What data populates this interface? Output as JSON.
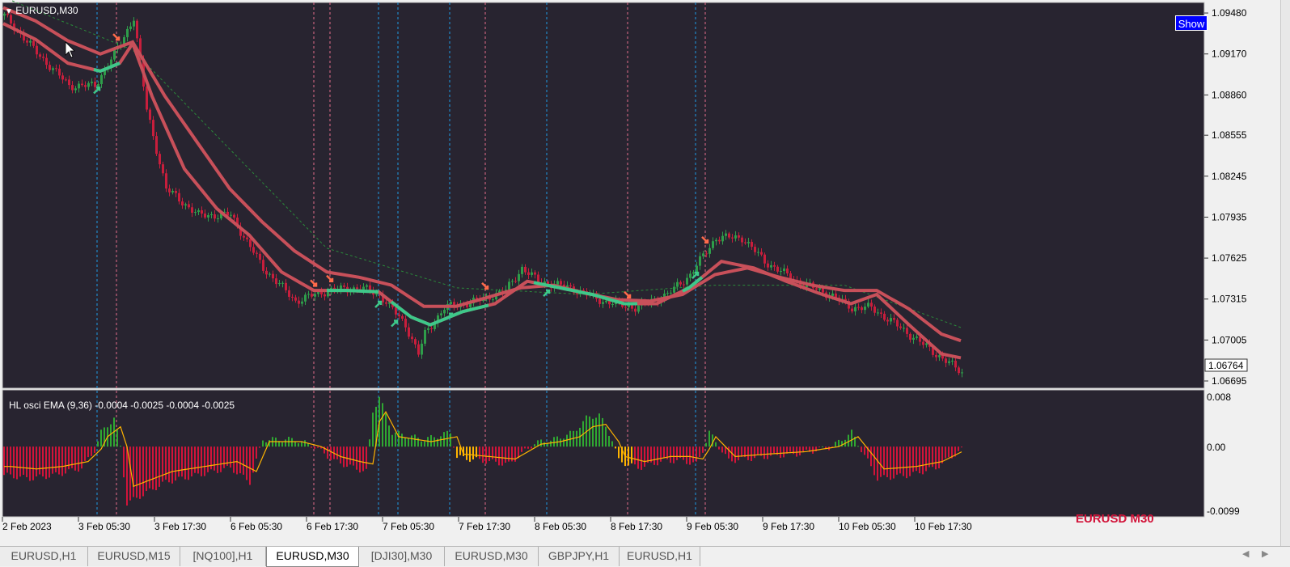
{
  "window": {
    "symbol_label": "EURUSD,M30",
    "show_button": "Show",
    "watermark": "EURUSD M30"
  },
  "colors": {
    "background": "#282430",
    "bull_candle": "#2e9d4a",
    "bear_candle": "#c81e3c",
    "ema_line": "#c8505a",
    "ema_up": "#3ec88a",
    "osc_pos": "#2fa832",
    "osc_neg": "#d2143a",
    "signal_line": "#ffb400",
    "vline_blue": "#1e9be6",
    "vline_pink": "#e66e8c"
  },
  "price_axis": {
    "ticks": [
      "1.09480",
      "1.09170",
      "1.08860",
      "1.08555",
      "1.08245",
      "1.07935",
      "1.07625",
      "1.07315",
      "1.07005",
      "1.06695"
    ],
    "current_price": "1.06764"
  },
  "indicator": {
    "label": "HL osci EMA (9,36) -0.0004 -0.0025 -0.0004 -0.0025",
    "ticks": [
      "0.008",
      "0.00",
      "-0.0099"
    ]
  },
  "time_axis": {
    "labels": [
      "2 Feb 2023",
      "3 Feb 05:30",
      "3 Feb 17:30",
      "6 Feb 05:30",
      "6 Feb 17:30",
      "7 Feb 05:30",
      "7 Feb 17:30",
      "8 Feb 05:30",
      "8 Feb 17:30",
      "9 Feb 05:30",
      "9 Feb 17:30",
      "10 Feb 05:30",
      "10 Feb 17:30"
    ]
  },
  "tabs": [
    {
      "label": "EURUSD,H1",
      "active": false
    },
    {
      "label": "EURUSD,M15",
      "active": false
    },
    {
      "label": "[NQ100],H1",
      "active": false
    },
    {
      "label": "EURUSD,M30",
      "active": true
    },
    {
      "label": "[DJI30],M30",
      "active": false
    },
    {
      "label": "EURUSD,M30",
      "active": false
    },
    {
      "label": "GBPJPY,H1",
      "active": false
    },
    {
      "label": "EURUSD,H1",
      "active": false
    }
  ],
  "chart_data": {
    "type": "line",
    "title": "EURUSD,M30",
    "price_path": [
      [
        0,
        1.0946
      ],
      [
        10,
        1.0918
      ],
      [
        20,
        1.0893
      ],
      [
        28,
        1.0893
      ],
      [
        36,
        1.0925
      ],
      [
        40,
        1.0945
      ],
      [
        44,
        1.0875
      ],
      [
        50,
        1.0815
      ],
      [
        60,
        1.0795
      ],
      [
        70,
        1.0795
      ],
      [
        80,
        1.0755
      ],
      [
        90,
        1.073
      ],
      [
        100,
        1.0738
      ],
      [
        110,
        1.074
      ],
      [
        116,
        1.0735
      ],
      [
        124,
        1.0712
      ],
      [
        128,
        1.069
      ],
      [
        130,
        1.0705
      ],
      [
        136,
        1.0725
      ],
      [
        146,
        1.073
      ],
      [
        155,
        1.0738
      ],
      [
        160,
        1.0755
      ],
      [
        165,
        1.0745
      ],
      [
        175,
        1.074
      ],
      [
        185,
        1.073
      ],
      [
        195,
        1.0725
      ],
      [
        205,
        1.0735
      ],
      [
        212,
        1.075
      ],
      [
        220,
        1.0778
      ],
      [
        228,
        1.0778
      ],
      [
        235,
        1.076
      ],
      [
        245,
        1.0745
      ],
      [
        255,
        1.0735
      ],
      [
        262,
        1.0725
      ],
      [
        268,
        1.0725
      ],
      [
        278,
        1.0708
      ],
      [
        288,
        1.069
      ],
      [
        296,
        1.0676
      ]
    ],
    "ema_fast": [
      [
        0,
        1.094
      ],
      [
        10,
        1.0928
      ],
      [
        20,
        1.091
      ],
      [
        30,
        1.0904
      ],
      [
        36,
        1.091
      ],
      [
        40,
        1.0925
      ],
      [
        46,
        1.0885
      ],
      [
        56,
        1.083
      ],
      [
        66,
        1.08
      ],
      [
        76,
        1.078
      ],
      [
        86,
        1.0752
      ],
      [
        96,
        1.0738
      ],
      [
        106,
        1.0738
      ],
      [
        116,
        1.0737
      ],
      [
        126,
        1.0718
      ],
      [
        132,
        1.0712
      ],
      [
        142,
        1.0722
      ],
      [
        152,
        1.0728
      ],
      [
        162,
        1.0745
      ],
      [
        172,
        1.074
      ],
      [
        182,
        1.0735
      ],
      [
        192,
        1.0728
      ],
      [
        202,
        1.0728
      ],
      [
        212,
        1.074
      ],
      [
        222,
        1.076
      ],
      [
        232,
        1.0755
      ],
      [
        242,
        1.0745
      ],
      [
        252,
        1.0736
      ],
      [
        262,
        1.0728
      ],
      [
        270,
        1.0735
      ],
      [
        280,
        1.0712
      ],
      [
        290,
        1.069
      ],
      [
        296,
        1.0687
      ]
    ],
    "ema_slow": [
      [
        0,
        1.0952
      ],
      [
        10,
        1.0942
      ],
      [
        20,
        1.0927
      ],
      [
        30,
        1.0917
      ],
      [
        40,
        1.0926
      ],
      [
        50,
        1.0885
      ],
      [
        60,
        1.085
      ],
      [
        70,
        1.0815
      ],
      [
        80,
        1.079
      ],
      [
        90,
        1.0768
      ],
      [
        100,
        1.0752
      ],
      [
        110,
        1.0748
      ],
      [
        120,
        1.0742
      ],
      [
        130,
        1.0726
      ],
      [
        140,
        1.0726
      ],
      [
        150,
        1.0733
      ],
      [
        160,
        1.074
      ],
      [
        170,
        1.0742
      ],
      [
        180,
        1.0736
      ],
      [
        190,
        1.0731
      ],
      [
        200,
        1.073
      ],
      [
        210,
        1.0735
      ],
      [
        220,
        1.075
      ],
      [
        230,
        1.0755
      ],
      [
        240,
        1.0748
      ],
      [
        250,
        1.0742
      ],
      [
        260,
        1.0738
      ],
      [
        270,
        1.0738
      ],
      [
        280,
        1.0724
      ],
      [
        290,
        1.0705
      ],
      [
        296,
        1.07
      ]
    ],
    "ema_dotted": [
      [
        0,
        1.096
      ],
      [
        40,
        1.092
      ],
      [
        100,
        1.077
      ],
      [
        140,
        1.074
      ],
      [
        180,
        1.0735
      ],
      [
        220,
        1.0742
      ],
      [
        260,
        1.0742
      ],
      [
        296,
        1.071
      ]
    ],
    "oscillator": [
      [
        0,
        -0.004
      ],
      [
        8,
        -0.0045
      ],
      [
        16,
        -0.004
      ],
      [
        24,
        -0.003
      ],
      [
        28,
        -0.0005
      ],
      [
        30,
        0.002
      ],
      [
        34,
        0.004
      ],
      [
        36,
        0.0
      ],
      [
        38,
        -0.008
      ],
      [
        42,
        -0.007
      ],
      [
        50,
        -0.005
      ],
      [
        60,
        -0.004
      ],
      [
        70,
        -0.003
      ],
      [
        76,
        -0.005
      ],
      [
        80,
        0.001
      ],
      [
        90,
        0.001
      ],
      [
        96,
        0.0
      ],
      [
        102,
        -0.002
      ],
      [
        108,
        -0.003
      ],
      [
        112,
        -0.0035
      ],
      [
        114,
        0.005
      ],
      [
        116,
        0.007
      ],
      [
        120,
        0.002
      ],
      [
        130,
        0.001
      ],
      [
        138,
        0.002
      ],
      [
        140,
        -0.0015
      ],
      [
        148,
        -0.002
      ],
      [
        156,
        -0.0025
      ],
      [
        164,
        0.0005
      ],
      [
        170,
        0.001
      ],
      [
        176,
        0.002
      ],
      [
        180,
        0.004
      ],
      [
        184,
        0.0045
      ],
      [
        188,
        0.001
      ],
      [
        190,
        -0.002
      ],
      [
        196,
        -0.003
      ],
      [
        204,
        -0.002
      ],
      [
        210,
        -0.002
      ],
      [
        214,
        -0.0025
      ],
      [
        216,
        -0.0005
      ],
      [
        218,
        0.002
      ],
      [
        224,
        -0.002
      ],
      [
        234,
        -0.0015
      ],
      [
        246,
        -0.001
      ],
      [
        256,
        0.0
      ],
      [
        262,
        0.002
      ],
      [
        270,
        -0.0045
      ],
      [
        280,
        -0.004
      ],
      [
        288,
        -0.003
      ],
      [
        296,
        -0.0004
      ]
    ],
    "signal_markers": [
      {
        "bar": 29,
        "type": "buy"
      },
      {
        "bar": 35,
        "type": "sell"
      },
      {
        "bar": 96,
        "type": "sell"
      },
      {
        "bar": 101,
        "type": "sell"
      },
      {
        "bar": 116,
        "type": "buy"
      },
      {
        "bar": 121,
        "type": "buy"
      },
      {
        "bar": 138,
        "type": "buy"
      },
      {
        "bar": 149,
        "type": "sell"
      },
      {
        "bar": 168,
        "type": "buy"
      },
      {
        "bar": 193,
        "type": "sell"
      },
      {
        "bar": 214,
        "type": "buy"
      },
      {
        "bar": 217,
        "type": "sell"
      }
    ],
    "vlines": [
      {
        "bar": 29,
        "color": "blue"
      },
      {
        "bar": 35,
        "color": "pink"
      },
      {
        "bar": 96,
        "color": "pink"
      },
      {
        "bar": 101,
        "color": "pink"
      },
      {
        "bar": 116,
        "color": "blue"
      },
      {
        "bar": 122,
        "color": "blue"
      },
      {
        "bar": 138,
        "color": "blue"
      },
      {
        "bar": 149,
        "color": "pink"
      },
      {
        "bar": 168,
        "color": "blue"
      },
      {
        "bar": 193,
        "color": "pink"
      },
      {
        "bar": 214,
        "color": "blue"
      },
      {
        "bar": 217,
        "color": "pink"
      }
    ],
    "ylim": [
      1.0664,
      1.0956
    ],
    "osc_ylim": [
      -0.0099,
      0.008
    ],
    "bars": 296
  }
}
